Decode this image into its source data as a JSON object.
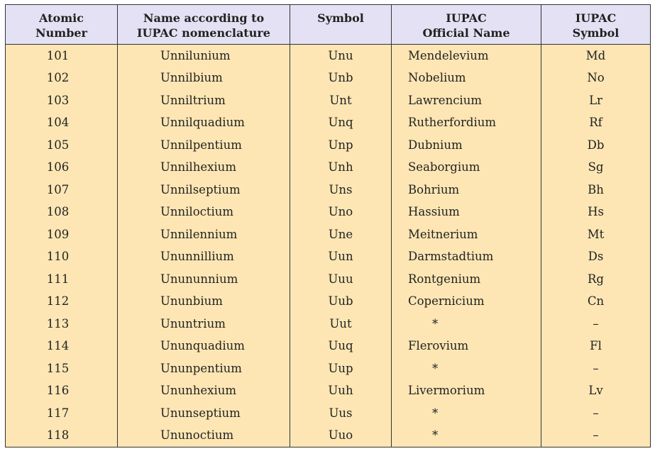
{
  "table": {
    "headers": {
      "atomic_number": [
        "Atomic",
        "Number"
      ],
      "name": [
        "Name according to",
        "IUPAC nomenclature"
      ],
      "symbol": [
        "Symbol"
      ],
      "official_name": [
        "IUPAC",
        "Official Name"
      ],
      "official_symbol": [
        "IUPAC",
        "Symbol"
      ]
    },
    "rows": [
      {
        "number": "101",
        "name": "Unnilunium",
        "symbol": "Unu",
        "official_name": "Mendelevium",
        "official_symbol": "Md"
      },
      {
        "number": "102",
        "name": "Unnilbium",
        "symbol": "Unb",
        "official_name": "Nobelium",
        "official_symbol": "No"
      },
      {
        "number": "103",
        "name": "Unniltrium",
        "symbol": "Unt",
        "official_name": "Lawrencium",
        "official_symbol": "Lr"
      },
      {
        "number": "104",
        "name": "Unnilquadium",
        "symbol": "Unq",
        "official_name": "Rutherfordium",
        "official_symbol": "Rf"
      },
      {
        "number": "105",
        "name": "Unnilpentium",
        "symbol": "Unp",
        "official_name": "Dubnium",
        "official_symbol": "Db"
      },
      {
        "number": "106",
        "name": "Unnilhexium",
        "symbol": "Unh",
        "official_name": "Seaborgium",
        "official_symbol": "Sg"
      },
      {
        "number": "107",
        "name": "Unnilseptium",
        "symbol": "Uns",
        "official_name": "Bohrium",
        "official_symbol": "Bh"
      },
      {
        "number": "108",
        "name": "Unniloctium",
        "symbol": "Uno",
        "official_name": "Hassium",
        "official_symbol": "Hs"
      },
      {
        "number": "109",
        "name": "Unnilennium",
        "symbol": "Une",
        "official_name": "Meitnerium",
        "official_symbol": "Mt"
      },
      {
        "number": "110",
        "name": "Ununnillium",
        "symbol": "Uun",
        "official_name": "Darmstadtium",
        "official_symbol": "Ds"
      },
      {
        "number": "111",
        "name": "Unununnium",
        "symbol": "Uuu",
        "official_name": "Rontgenium",
        "official_symbol": "Rg"
      },
      {
        "number": "112",
        "name": "Ununbium",
        "symbol": "Uub",
        "official_name": "Copernicium",
        "official_symbol": "Cn"
      },
      {
        "number": "113",
        "name": "Ununtrium",
        "symbol": "Uut",
        "official_name": "*",
        "official_symbol": "–"
      },
      {
        "number": "114",
        "name": "Ununquadium",
        "symbol": "Uuq",
        "official_name": "Flerovium",
        "official_symbol": "Fl"
      },
      {
        "number": "115",
        "name": "Ununpentium",
        "symbol": "Uup",
        "official_name": "*",
        "official_symbol": "–"
      },
      {
        "number": "116",
        "name": "Ununhexium",
        "symbol": "Uuh",
        "official_name": "Livermorium",
        "official_symbol": "Lv"
      },
      {
        "number": "117",
        "name": "Ununseptium",
        "symbol": "Uus",
        "official_name": "*",
        "official_symbol": "–"
      },
      {
        "number": "118",
        "name": "Ununoctium",
        "symbol": "Uuo",
        "official_name": "*",
        "official_symbol": "–"
      }
    ]
  },
  "colors": {
    "header_background": "#e3e1f3",
    "body_background": "#fde6b4",
    "border": "#333333",
    "text": "#222222"
  }
}
